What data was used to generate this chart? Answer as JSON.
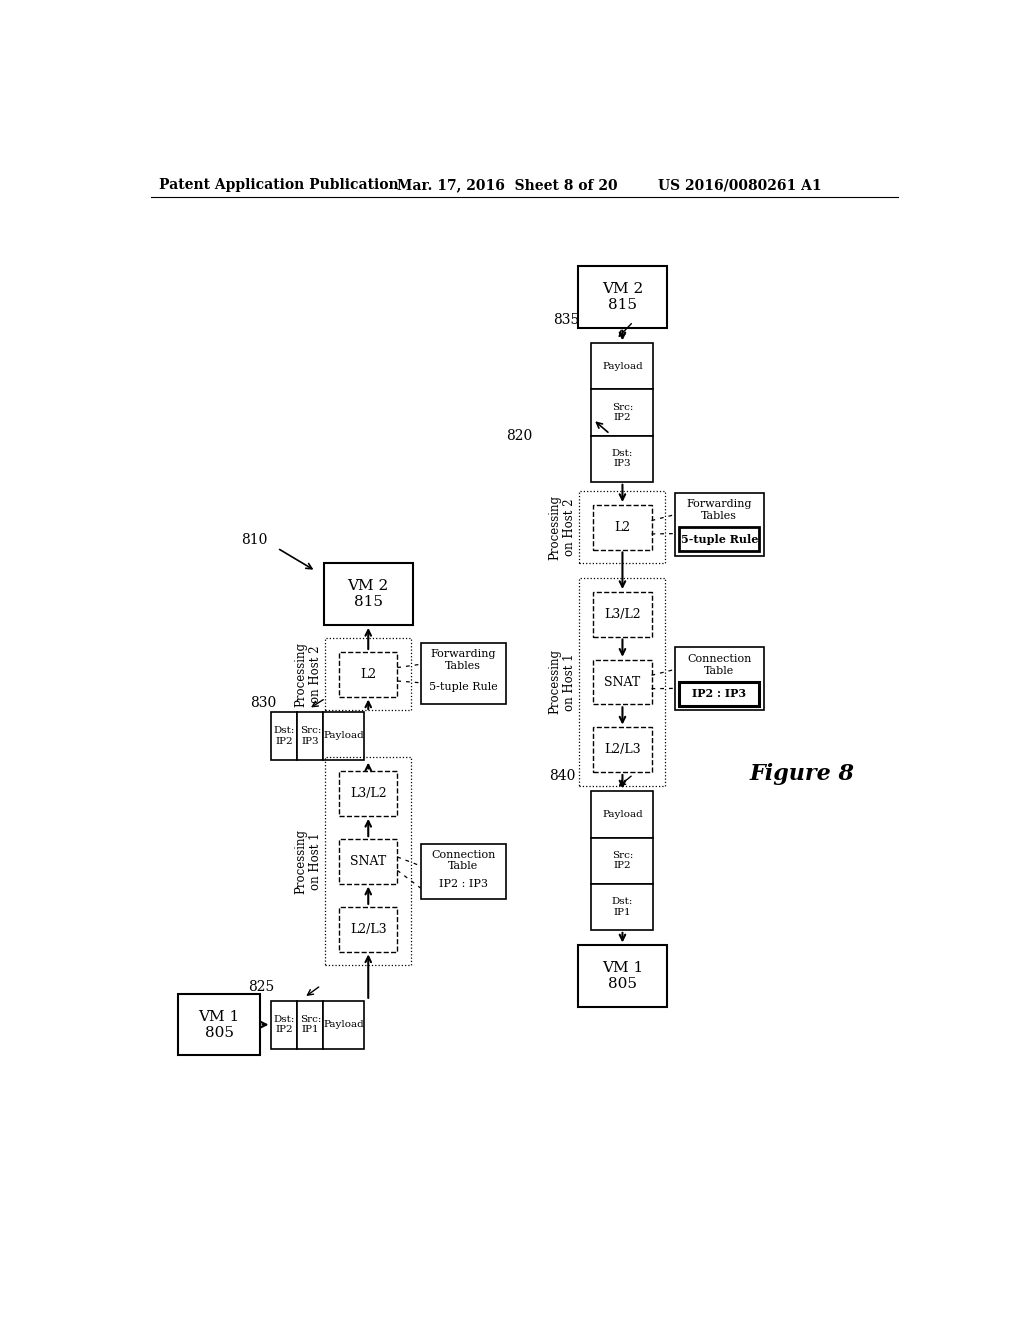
{
  "header_left": "Patent Application Publication",
  "header_mid": "Mar. 17, 2016  Sheet 8 of 20",
  "header_right": "US 2016/0080261 A1",
  "figure_label": "Figure 8",
  "bg_color": "#ffffff"
}
